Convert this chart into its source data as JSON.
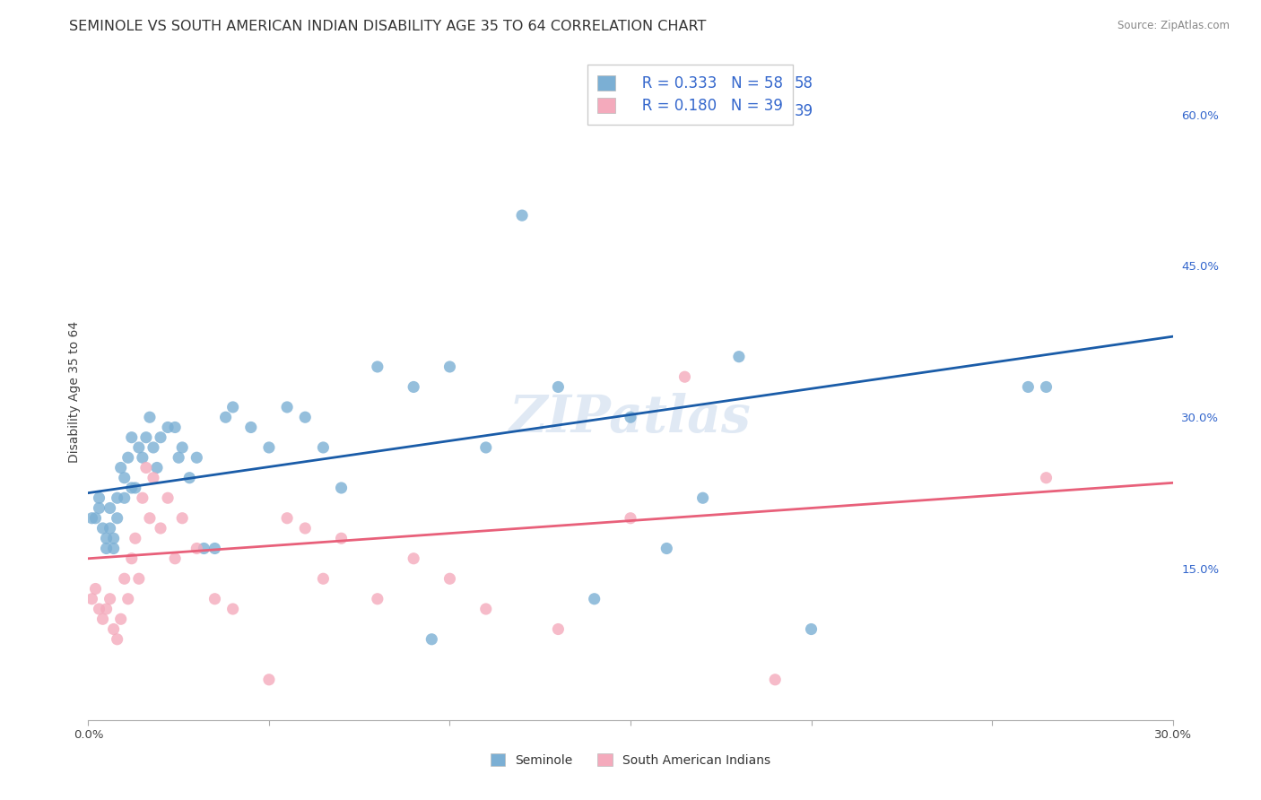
{
  "title": "SEMINOLE VS SOUTH AMERICAN INDIAN DISABILITY AGE 35 TO 64 CORRELATION CHART",
  "source": "Source: ZipAtlas.com",
  "ylabel": "Disability Age 35 to 64",
  "xlim": [
    0.0,
    0.3
  ],
  "ylim": [
    0.0,
    0.65
  ],
  "x_ticks": [
    0.0,
    0.05,
    0.1,
    0.15,
    0.2,
    0.25,
    0.3
  ],
  "x_tick_labels": [
    "0.0%",
    "",
    "",
    "",
    "",
    "",
    "30.0%"
  ],
  "y_ticks_right": [
    0.15,
    0.3,
    0.45,
    0.6
  ],
  "y_tick_labels_right": [
    "15.0%",
    "30.0%",
    "45.0%",
    "60.0%"
  ],
  "seminole_R": 0.333,
  "seminole_N": 58,
  "south_american_R": 0.18,
  "south_american_N": 39,
  "seminole_color": "#7BAFD4",
  "south_american_color": "#F4AABC",
  "seminole_line_color": "#1A5CA8",
  "south_american_line_color": "#E8607A",
  "background_color": "#FFFFFF",
  "grid_color": "#DDDDEE",
  "legend_text_color": "#3366CC",
  "legend_label_color": "#333333",
  "watermark": "ZIPatlas",
  "title_fontsize": 11.5,
  "axis_label_fontsize": 10,
  "tick_fontsize": 9.5,
  "seminole_x": [
    0.001,
    0.002,
    0.003,
    0.003,
    0.004,
    0.005,
    0.005,
    0.006,
    0.006,
    0.007,
    0.007,
    0.008,
    0.008,
    0.009,
    0.01,
    0.01,
    0.011,
    0.012,
    0.012,
    0.013,
    0.014,
    0.015,
    0.016,
    0.017,
    0.018,
    0.019,
    0.02,
    0.022,
    0.024,
    0.025,
    0.026,
    0.028,
    0.03,
    0.032,
    0.035,
    0.038,
    0.04,
    0.045,
    0.05,
    0.055,
    0.06,
    0.065,
    0.07,
    0.08,
    0.09,
    0.095,
    0.1,
    0.11,
    0.12,
    0.13,
    0.14,
    0.15,
    0.16,
    0.17,
    0.18,
    0.2,
    0.26,
    0.265
  ],
  "seminole_y": [
    0.2,
    0.2,
    0.22,
    0.21,
    0.19,
    0.18,
    0.17,
    0.19,
    0.21,
    0.18,
    0.17,
    0.22,
    0.2,
    0.25,
    0.24,
    0.22,
    0.26,
    0.28,
    0.23,
    0.23,
    0.27,
    0.26,
    0.28,
    0.3,
    0.27,
    0.25,
    0.28,
    0.29,
    0.29,
    0.26,
    0.27,
    0.24,
    0.26,
    0.17,
    0.17,
    0.3,
    0.31,
    0.29,
    0.27,
    0.31,
    0.3,
    0.27,
    0.23,
    0.35,
    0.33,
    0.08,
    0.35,
    0.27,
    0.5,
    0.33,
    0.12,
    0.3,
    0.17,
    0.22,
    0.36,
    0.09,
    0.33,
    0.33
  ],
  "south_american_x": [
    0.001,
    0.002,
    0.003,
    0.004,
    0.005,
    0.006,
    0.007,
    0.008,
    0.009,
    0.01,
    0.011,
    0.012,
    0.013,
    0.014,
    0.015,
    0.016,
    0.017,
    0.018,
    0.02,
    0.022,
    0.024,
    0.026,
    0.03,
    0.035,
    0.04,
    0.05,
    0.055,
    0.06,
    0.065,
    0.07,
    0.08,
    0.09,
    0.1,
    0.11,
    0.13,
    0.15,
    0.165,
    0.19,
    0.265
  ],
  "south_american_y": [
    0.12,
    0.13,
    0.11,
    0.1,
    0.11,
    0.12,
    0.09,
    0.08,
    0.1,
    0.14,
    0.12,
    0.16,
    0.18,
    0.14,
    0.22,
    0.25,
    0.2,
    0.24,
    0.19,
    0.22,
    0.16,
    0.2,
    0.17,
    0.12,
    0.11,
    0.04,
    0.2,
    0.19,
    0.14,
    0.18,
    0.12,
    0.16,
    0.14,
    0.11,
    0.09,
    0.2,
    0.34,
    0.04,
    0.24
  ],
  "sem_line_x0": 0.0,
  "sem_line_x1": 0.3,
  "sem_line_y0": 0.225,
  "sem_line_y1": 0.38,
  "sai_line_x0": 0.0,
  "sai_line_x1": 0.3,
  "sai_line_y0": 0.16,
  "sai_line_y1": 0.235
}
